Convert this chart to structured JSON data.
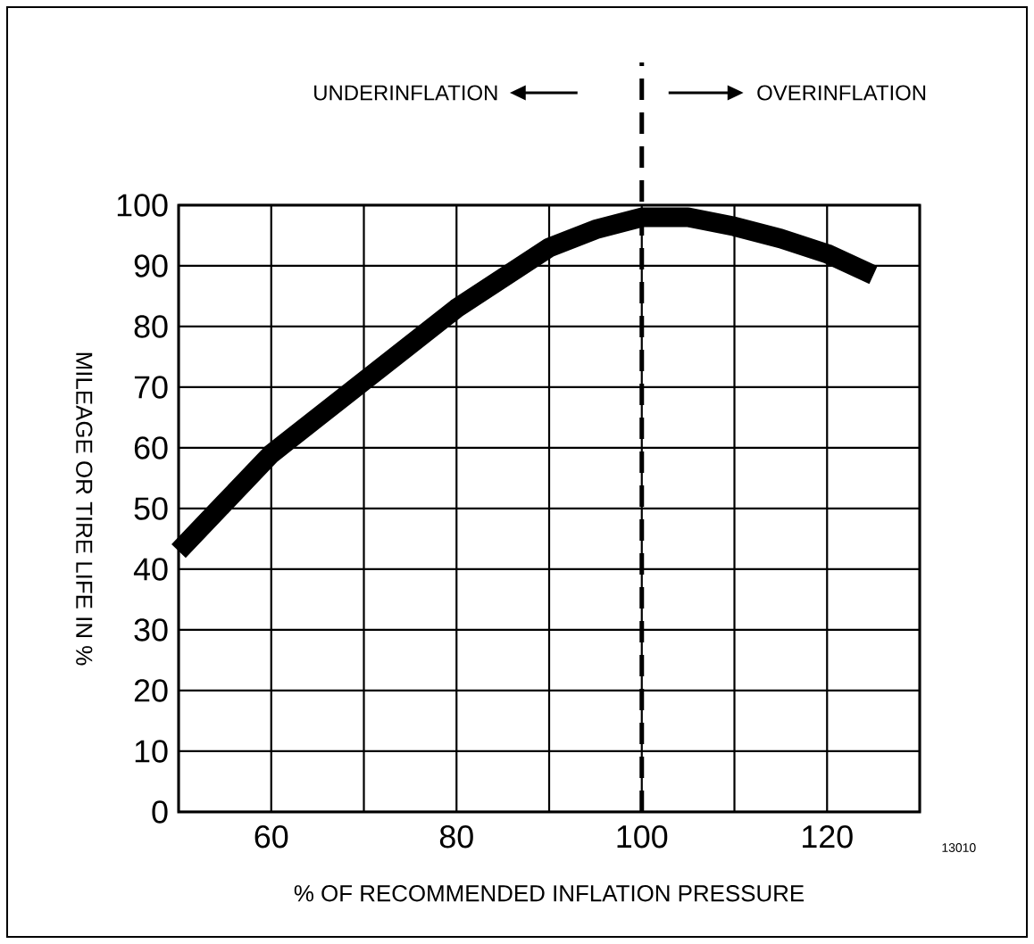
{
  "chart_data": {
    "type": "line",
    "xlabel": "% OF RECOMMENDED INFLATION PRESSURE",
    "ylabel": "MILEAGE OR TIRE LIFE IN %",
    "annotations": [
      "UNDERINFLATION",
      "OVERINFLATION",
      "13010"
    ],
    "x": [
      50,
      55,
      60,
      65,
      70,
      75,
      80,
      85,
      90,
      95,
      100,
      105,
      110,
      115,
      120,
      125
    ],
    "series": [
      {
        "color": "#000000",
        "values": [
          43,
          51,
          59,
          65,
          71,
          77,
          83,
          88,
          93,
          96,
          98,
          98,
          96.5,
          94.5,
          92,
          88.5
        ]
      }
    ],
    "xlim": [
      50,
      130
    ],
    "ylim": [
      0,
      100
    ],
    "xticks": [
      {
        "value": 50,
        "label": null
      },
      60,
      {
        "value": 70,
        "label": null
      },
      80,
      {
        "value": 90,
        "label": null
      },
      100,
      {
        "value": 110,
        "label": null
      },
      120,
      {
        "value": 130,
        "label": null
      }
    ],
    "yticks": [
      0,
      10,
      20,
      30,
      40,
      50,
      60,
      70,
      80,
      90,
      100
    ],
    "ref_lines": [
      {
        "axis": "x",
        "value": 100,
        "line_style": "dashed"
      }
    ],
    "grid": true,
    "marker": "none",
    "line_style": "solid"
  }
}
